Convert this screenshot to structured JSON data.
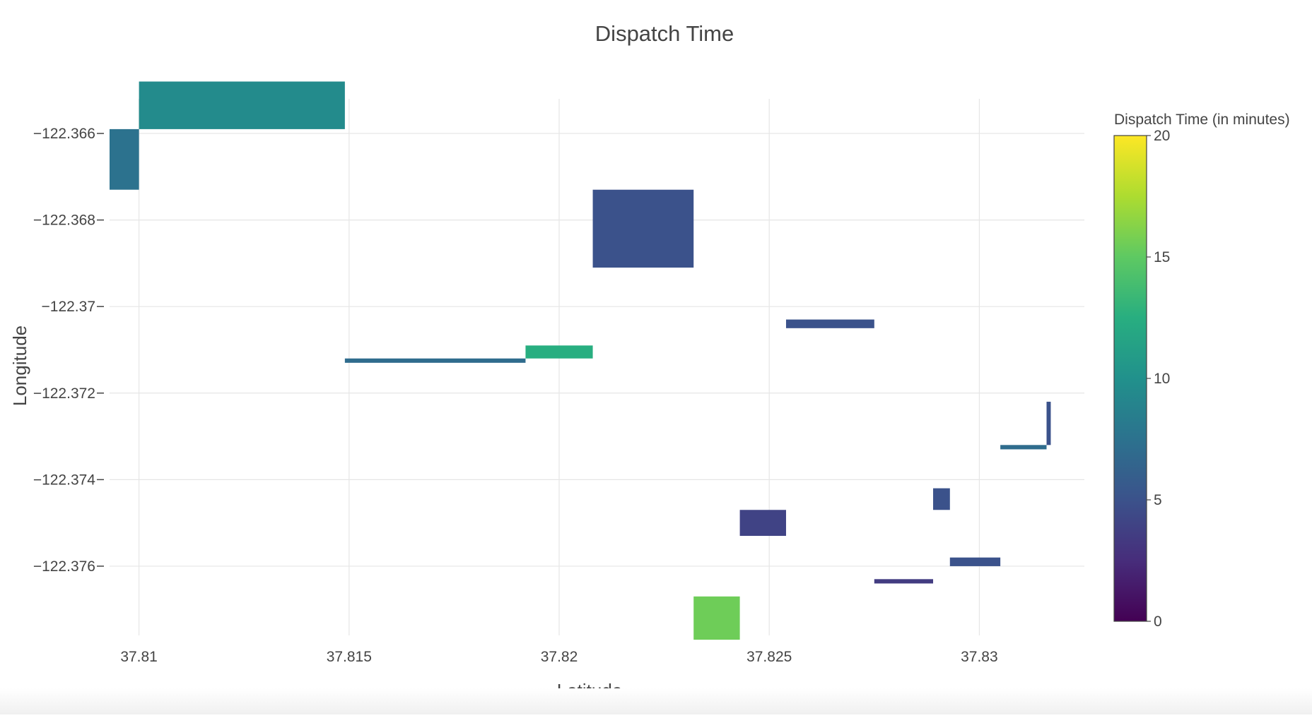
{
  "chart_data": {
    "type": "heatmap",
    "title": "Dispatch Time",
    "xlabel": "Latitude",
    "ylabel": "Longitude",
    "xlim": [
      37.8093,
      37.8325
    ],
    "ylim": [
      -122.3776,
      -122.3652
    ],
    "x_ticks": [
      {
        "value": 37.81,
        "label": "37.81"
      },
      {
        "value": 37.815,
        "label": "37.815"
      },
      {
        "value": 37.82,
        "label": "37.82"
      },
      {
        "value": 37.825,
        "label": "37.825"
      },
      {
        "value": 37.83,
        "label": "37.83"
      }
    ],
    "y_ticks": [
      {
        "value": -122.366,
        "label": "−122.366"
      },
      {
        "value": -122.368,
        "label": "−122.368"
      },
      {
        "value": -122.37,
        "label": "−122.37"
      },
      {
        "value": -122.372,
        "label": "−122.372"
      },
      {
        "value": -122.374,
        "label": "−122.374"
      },
      {
        "value": -122.376,
        "label": "−122.376"
      }
    ],
    "grid": true,
    "colorscale": "viridis",
    "colorbar": {
      "title": "Dispatch Time (in minutes)",
      "range": [
        0,
        20
      ],
      "ticks": [
        {
          "value": 0,
          "label": "0"
        },
        {
          "value": 5,
          "label": "5"
        },
        {
          "value": 10,
          "label": "10"
        },
        {
          "value": 15,
          "label": "15"
        },
        {
          "value": 20,
          "label": "20"
        }
      ]
    },
    "cells": [
      {
        "x0": 37.8093,
        "x1": 37.81,
        "y0": -122.3673,
        "y1": -122.3659,
        "value": 7.5
      },
      {
        "x0": 37.81,
        "x1": 37.8149,
        "y0": -122.3659,
        "y1": -122.3648,
        "value": 9.5
      },
      {
        "x0": 37.8208,
        "x1": 37.8232,
        "y0": -122.3691,
        "y1": -122.3673,
        "value": 5.0
      },
      {
        "x0": 37.8149,
        "x1": 37.8192,
        "y0": -122.3713,
        "y1": -122.3712,
        "value": 7.0
      },
      {
        "x0": 37.8192,
        "x1": 37.8208,
        "y0": -122.3712,
        "y1": -122.3709,
        "value": 12.5
      },
      {
        "x0": 37.8254,
        "x1": 37.8275,
        "y0": -122.3705,
        "y1": -122.3703,
        "value": 5.0
      },
      {
        "x0": 37.8305,
        "x1": 37.8316,
        "y0": -122.3733,
        "y1": -122.3732,
        "value": 7.0
      },
      {
        "x0": 37.8316,
        "x1": 37.8317,
        "y0": -122.3732,
        "y1": -122.3722,
        "value": 5.0
      },
      {
        "x0": 37.8289,
        "x1": 37.8293,
        "y0": -122.3747,
        "y1": -122.3742,
        "value": 5.0
      },
      {
        "x0": 37.8243,
        "x1": 37.8254,
        "y0": -122.3753,
        "y1": -122.3747,
        "value": 4.0
      },
      {
        "x0": 37.8293,
        "x1": 37.8305,
        "y0": -122.376,
        "y1": -122.3758,
        "value": 5.0
      },
      {
        "x0": 37.8275,
        "x1": 37.8289,
        "y0": -122.3764,
        "y1": -122.3763,
        "value": 3.5
      },
      {
        "x0": 37.8232,
        "x1": 37.8243,
        "y0": -122.3777,
        "y1": -122.3767,
        "value": 15.5
      }
    ]
  }
}
